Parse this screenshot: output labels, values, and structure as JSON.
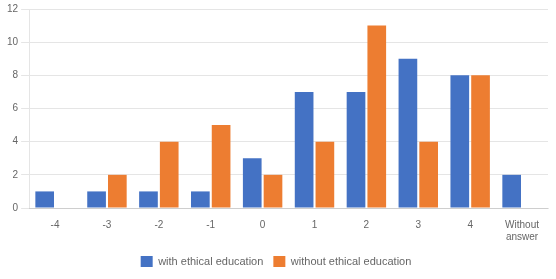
{
  "chart_data": {
    "type": "bar",
    "categories": [
      "-4",
      "-3",
      "-2",
      "-1",
      "0",
      "1",
      "2",
      "3",
      "4",
      "Without\nanswer"
    ],
    "series": [
      {
        "name": "with ethical education",
        "color": "#4472C4",
        "values": [
          1,
          1,
          1,
          1,
          3,
          7,
          7,
          9,
          8,
          2
        ]
      },
      {
        "name": "without ethical education",
        "color": "#ED7D31",
        "values": [
          0,
          2,
          4,
          5,
          2,
          4,
          11,
          4,
          8,
          0
        ]
      }
    ],
    "ylim": [
      0,
      12
    ],
    "yticks": [
      0,
      2,
      4,
      6,
      8,
      10,
      12
    ],
    "grid": true,
    "legend": "bottom"
  }
}
